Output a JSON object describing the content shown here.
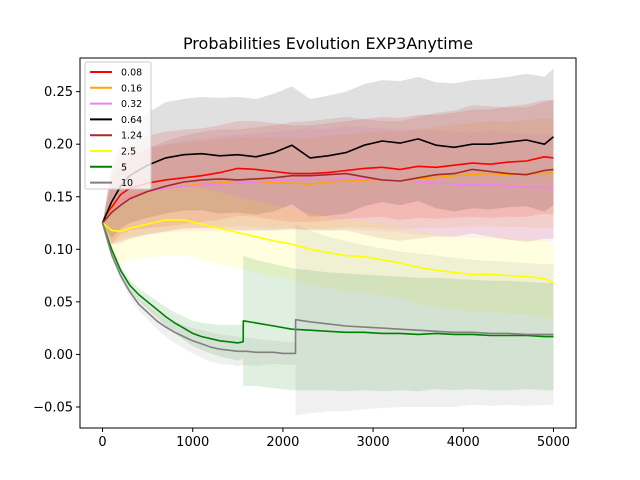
{
  "chart_data": {
    "type": "line",
    "title": "Probabilities Evolution EXP3Anytime",
    "xlabel": "",
    "ylabel": "",
    "xlim": [
      -250,
      5250
    ],
    "ylim": [
      -0.07,
      0.282
    ],
    "xticks": [
      0,
      1000,
      2000,
      3000,
      4000,
      5000
    ],
    "yticks": [
      -0.05,
      0.0,
      0.05,
      0.1,
      0.15,
      0.2,
      0.25
    ],
    "ytick_labels": [
      "−0.05",
      "0.00",
      "0.05",
      "0.10",
      "0.15",
      "0.20",
      "0.25"
    ],
    "grid": false,
    "legend_position": "top-left",
    "band_opacity": 0.12,
    "series": [
      {
        "name": "0.08",
        "color": "#ff0000",
        "x": [
          0,
          100,
          200,
          300,
          500,
          700,
          900,
          1100,
          1300,
          1500,
          1700,
          1900,
          2100,
          2300,
          2500,
          2700,
          2900,
          3100,
          3300,
          3500,
          3700,
          3900,
          4100,
          4300,
          4500,
          4700,
          4900,
          5000
        ],
        "y": [
          0.125,
          0.14,
          0.152,
          0.158,
          0.163,
          0.166,
          0.168,
          0.17,
          0.173,
          0.177,
          0.176,
          0.174,
          0.172,
          0.172,
          0.173,
          0.175,
          0.177,
          0.178,
          0.176,
          0.179,
          0.178,
          0.18,
          0.182,
          0.181,
          0.183,
          0.184,
          0.188,
          0.187
        ],
        "band_upper": [
          0.125,
          0.175,
          0.19,
          0.2,
          0.208,
          0.212,
          0.214,
          0.215,
          0.218,
          0.222,
          0.222,
          0.22,
          0.218,
          0.218,
          0.22,
          0.222,
          0.224,
          0.226,
          0.225,
          0.228,
          0.228,
          0.23,
          0.233,
          0.233,
          0.236,
          0.238,
          0.242,
          0.242
        ],
        "band_lower": [
          0.125,
          0.105,
          0.114,
          0.118,
          0.12,
          0.122,
          0.124,
          0.126,
          0.128,
          0.132,
          0.131,
          0.128,
          0.126,
          0.126,
          0.127,
          0.129,
          0.13,
          0.131,
          0.128,
          0.13,
          0.129,
          0.13,
          0.131,
          0.13,
          0.131,
          0.131,
          0.134,
          0.133
        ]
      },
      {
        "name": "0.16",
        "color": "#ffa500",
        "x": [
          0,
          100,
          200,
          300,
          500,
          700,
          900,
          1100,
          1300,
          1500,
          1700,
          1900,
          2100,
          2300,
          2500,
          2700,
          2900,
          3100,
          3300,
          3500,
          3700,
          3900,
          4100,
          4300,
          4500,
          4700,
          4900,
          5000
        ],
        "y": [
          0.125,
          0.138,
          0.146,
          0.151,
          0.155,
          0.158,
          0.16,
          0.162,
          0.163,
          0.164,
          0.164,
          0.163,
          0.163,
          0.162,
          0.164,
          0.165,
          0.166,
          0.166,
          0.165,
          0.167,
          0.168,
          0.17,
          0.171,
          0.172,
          0.171,
          0.172,
          0.172,
          0.173
        ],
        "band_upper": [
          0.125,
          0.17,
          0.183,
          0.19,
          0.195,
          0.199,
          0.201,
          0.203,
          0.205,
          0.206,
          0.207,
          0.206,
          0.206,
          0.205,
          0.208,
          0.209,
          0.211,
          0.212,
          0.211,
          0.214,
          0.216,
          0.219,
          0.22,
          0.222,
          0.221,
          0.223,
          0.224,
          0.225
        ],
        "band_lower": [
          0.125,
          0.106,
          0.109,
          0.112,
          0.115,
          0.117,
          0.119,
          0.121,
          0.121,
          0.122,
          0.121,
          0.12,
          0.12,
          0.119,
          0.12,
          0.121,
          0.121,
          0.12,
          0.119,
          0.12,
          0.12,
          0.121,
          0.122,
          0.122,
          0.121,
          0.121,
          0.12,
          0.121
        ]
      },
      {
        "name": "0.32",
        "color": "#ee82ee",
        "x": [
          0,
          100,
          200,
          300,
          500,
          700,
          900,
          1100,
          1300,
          1500,
          1700,
          1900,
          2100,
          2300,
          2500,
          2700,
          2900,
          3100,
          3300,
          3500,
          3700,
          3900,
          4100,
          4300,
          4500,
          4700,
          4900,
          5000
        ],
        "y": [
          0.125,
          0.136,
          0.145,
          0.15,
          0.155,
          0.158,
          0.16,
          0.161,
          0.162,
          0.163,
          0.164,
          0.165,
          0.166,
          0.167,
          0.166,
          0.168,
          0.167,
          0.166,
          0.165,
          0.164,
          0.163,
          0.162,
          0.161,
          0.162,
          0.16,
          0.159,
          0.159,
          0.158
        ],
        "band_upper": [
          0.125,
          0.168,
          0.182,
          0.19,
          0.196,
          0.2,
          0.203,
          0.205,
          0.207,
          0.209,
          0.21,
          0.212,
          0.213,
          0.215,
          0.214,
          0.217,
          0.216,
          0.215,
          0.214,
          0.214,
          0.213,
          0.212,
          0.211,
          0.213,
          0.211,
          0.21,
          0.21,
          0.209
        ],
        "band_lower": [
          0.125,
          0.104,
          0.108,
          0.11,
          0.114,
          0.116,
          0.117,
          0.117,
          0.117,
          0.117,
          0.118,
          0.118,
          0.119,
          0.119,
          0.118,
          0.119,
          0.118,
          0.117,
          0.116,
          0.114,
          0.113,
          0.112,
          0.111,
          0.111,
          0.109,
          0.108,
          0.108,
          0.107
        ]
      },
      {
        "name": "0.64",
        "color": "#000000",
        "x": [
          0,
          100,
          200,
          300,
          500,
          700,
          900,
          1100,
          1300,
          1500,
          1700,
          1900,
          2100,
          2300,
          2500,
          2700,
          2900,
          3100,
          3300,
          3500,
          3700,
          3900,
          4100,
          4300,
          4500,
          4700,
          4900,
          5000
        ],
        "y": [
          0.125,
          0.145,
          0.16,
          0.17,
          0.18,
          0.187,
          0.19,
          0.191,
          0.189,
          0.19,
          0.188,
          0.192,
          0.199,
          0.187,
          0.189,
          0.192,
          0.199,
          0.203,
          0.201,
          0.205,
          0.199,
          0.197,
          0.2,
          0.2,
          0.202,
          0.204,
          0.2,
          0.207
        ],
        "band_upper": [
          0.125,
          0.18,
          0.2,
          0.215,
          0.23,
          0.24,
          0.243,
          0.245,
          0.244,
          0.245,
          0.243,
          0.248,
          0.255,
          0.243,
          0.246,
          0.25,
          0.257,
          0.261,
          0.26,
          0.264,
          0.259,
          0.258,
          0.261,
          0.262,
          0.264,
          0.267,
          0.264,
          0.272
        ],
        "band_lower": [
          0.125,
          0.11,
          0.12,
          0.125,
          0.13,
          0.134,
          0.137,
          0.137,
          0.134,
          0.135,
          0.133,
          0.136,
          0.143,
          0.131,
          0.132,
          0.134,
          0.141,
          0.145,
          0.142,
          0.146,
          0.139,
          0.136,
          0.139,
          0.138,
          0.14,
          0.141,
          0.136,
          0.142
        ]
      },
      {
        "name": "1.24",
        "color": "#a52a2a",
        "x": [
          0,
          100,
          200,
          300,
          500,
          700,
          900,
          1100,
          1300,
          1500,
          1700,
          1900,
          2100,
          2300,
          2500,
          2700,
          2900,
          3100,
          3300,
          3500,
          3700,
          3900,
          4100,
          4300,
          4500,
          4700,
          4900,
          5000
        ],
        "y": [
          0.125,
          0.135,
          0.142,
          0.148,
          0.155,
          0.16,
          0.164,
          0.166,
          0.167,
          0.166,
          0.167,
          0.168,
          0.17,
          0.17,
          0.171,
          0.172,
          0.169,
          0.166,
          0.165,
          0.168,
          0.171,
          0.172,
          0.176,
          0.174,
          0.172,
          0.171,
          0.175,
          0.176
        ],
        "band_upper": [
          0.125,
          0.165,
          0.178,
          0.186,
          0.196,
          0.203,
          0.208,
          0.212,
          0.214,
          0.214,
          0.216,
          0.218,
          0.221,
          0.222,
          0.224,
          0.226,
          0.224,
          0.222,
          0.222,
          0.226,
          0.23,
          0.232,
          0.237,
          0.236,
          0.235,
          0.235,
          0.24,
          0.242
        ],
        "band_lower": [
          0.125,
          0.105,
          0.106,
          0.11,
          0.114,
          0.117,
          0.12,
          0.12,
          0.12,
          0.118,
          0.118,
          0.118,
          0.119,
          0.118,
          0.118,
          0.118,
          0.114,
          0.11,
          0.108,
          0.11,
          0.112,
          0.112,
          0.115,
          0.112,
          0.109,
          0.107,
          0.11,
          0.11
        ]
      },
      {
        "name": "2.5",
        "color": "#ffff00",
        "x": [
          0,
          100,
          200,
          300,
          500,
          700,
          900,
          1100,
          1300,
          1500,
          1700,
          1900,
          2100,
          2300,
          2500,
          2700,
          2900,
          3100,
          3300,
          3500,
          3700,
          3900,
          4100,
          4300,
          4500,
          4700,
          4900,
          5000
        ],
        "y": [
          0.125,
          0.118,
          0.117,
          0.12,
          0.124,
          0.128,
          0.128,
          0.124,
          0.12,
          0.116,
          0.112,
          0.108,
          0.105,
          0.1,
          0.097,
          0.094,
          0.093,
          0.09,
          0.087,
          0.083,
          0.08,
          0.078,
          0.076,
          0.076,
          0.075,
          0.074,
          0.072,
          0.068
        ],
        "band_upper": [
          0.125,
          0.145,
          0.147,
          0.15,
          0.156,
          0.162,
          0.162,
          0.158,
          0.154,
          0.15,
          0.146,
          0.142,
          0.139,
          0.134,
          0.131,
          0.128,
          0.127,
          0.124,
          0.121,
          0.118,
          0.115,
          0.113,
          0.112,
          0.112,
          0.111,
          0.11,
          0.109,
          0.105
        ],
        "band_lower": [
          0.125,
          0.091,
          0.087,
          0.09,
          0.092,
          0.094,
          0.094,
          0.09,
          0.086,
          0.082,
          0.078,
          0.074,
          0.071,
          0.066,
          0.063,
          0.06,
          0.059,
          0.056,
          0.053,
          0.048,
          0.045,
          0.043,
          0.04,
          0.04,
          0.039,
          0.038,
          0.035,
          0.031
        ]
      },
      {
        "name": "5",
        "color": "#008000",
        "x": [
          0,
          100,
          200,
          300,
          400,
          500,
          600,
          700,
          800,
          900,
          1000,
          1100,
          1200,
          1300,
          1400,
          1500,
          1560,
          1561,
          1700,
          1900,
          2100,
          2300,
          2500,
          2700,
          2900,
          3100,
          3300,
          3500,
          3700,
          3900,
          4100,
          4300,
          4500,
          4700,
          4900,
          5000
        ],
        "y": [
          0.125,
          0.1,
          0.08,
          0.066,
          0.057,
          0.05,
          0.043,
          0.036,
          0.03,
          0.025,
          0.02,
          0.017,
          0.015,
          0.013,
          0.012,
          0.011,
          0.012,
          0.032,
          0.03,
          0.027,
          0.024,
          0.023,
          0.022,
          0.021,
          0.021,
          0.02,
          0.02,
          0.019,
          0.02,
          0.019,
          0.019,
          0.018,
          0.018,
          0.018,
          0.017,
          0.017
        ],
        "band_upper": [
          0.125,
          0.103,
          0.084,
          0.071,
          0.063,
          0.057,
          0.051,
          0.045,
          0.04,
          0.036,
          0.032,
          0.03,
          0.029,
          0.028,
          0.028,
          0.028,
          0.028,
          0.094,
          0.09,
          0.086,
          0.082,
          0.08,
          0.078,
          0.077,
          0.076,
          0.075,
          0.074,
          0.073,
          0.073,
          0.072,
          0.071,
          0.07,
          0.07,
          0.069,
          0.068,
          0.068
        ],
        "band_lower": [
          0.125,
          0.097,
          0.076,
          0.061,
          0.051,
          0.043,
          0.035,
          0.027,
          0.02,
          0.014,
          0.008,
          0.004,
          0.001,
          -0.002,
          -0.004,
          -0.006,
          -0.004,
          -0.03,
          -0.03,
          -0.032,
          -0.034,
          -0.034,
          -0.034,
          -0.035,
          -0.034,
          -0.035,
          -0.034,
          -0.035,
          -0.033,
          -0.034,
          -0.033,
          -0.034,
          -0.034,
          -0.033,
          -0.034,
          -0.034
        ]
      },
      {
        "name": "10",
        "color": "#808080",
        "x": [
          0,
          100,
          200,
          300,
          400,
          500,
          600,
          700,
          800,
          900,
          1000,
          1100,
          1200,
          1300,
          1400,
          1500,
          1600,
          1700,
          1800,
          1900,
          2000,
          2100,
          2140,
          2141,
          2300,
          2500,
          2700,
          2900,
          3100,
          3300,
          3500,
          3700,
          3900,
          4100,
          4300,
          4500,
          4700,
          4900,
          5000
        ],
        "y": [
          0.125,
          0.095,
          0.075,
          0.06,
          0.048,
          0.04,
          0.032,
          0.026,
          0.021,
          0.017,
          0.013,
          0.01,
          0.007,
          0.005,
          0.004,
          0.003,
          0.003,
          0.002,
          0.002,
          0.002,
          0.001,
          0.001,
          0.001,
          0.033,
          0.031,
          0.029,
          0.027,
          0.026,
          0.025,
          0.024,
          0.023,
          0.022,
          0.021,
          0.021,
          0.02,
          0.02,
          0.019,
          0.019,
          0.019
        ],
        "band_upper": [
          0.125,
          0.098,
          0.079,
          0.065,
          0.054,
          0.047,
          0.04,
          0.035,
          0.031,
          0.028,
          0.025,
          0.023,
          0.021,
          0.019,
          0.018,
          0.017,
          0.016,
          0.015,
          0.014,
          0.013,
          0.012,
          0.012,
          0.012,
          0.124,
          0.118,
          0.112,
          0.108,
          0.104,
          0.101,
          0.098,
          0.096,
          0.094,
          0.092,
          0.09,
          0.089,
          0.088,
          0.087,
          0.086,
          0.086
        ],
        "band_lower": [
          0.125,
          0.092,
          0.071,
          0.055,
          0.042,
          0.033,
          0.024,
          0.017,
          0.011,
          0.006,
          0.001,
          -0.003,
          -0.007,
          -0.009,
          -0.01,
          -0.011,
          -0.01,
          -0.011,
          -0.01,
          -0.009,
          -0.01,
          -0.01,
          -0.01,
          -0.058,
          -0.056,
          -0.054,
          -0.054,
          -0.052,
          -0.051,
          -0.05,
          -0.05,
          -0.05,
          -0.05,
          -0.048,
          -0.049,
          -0.048,
          -0.049,
          -0.048,
          -0.048
        ]
      }
    ]
  }
}
